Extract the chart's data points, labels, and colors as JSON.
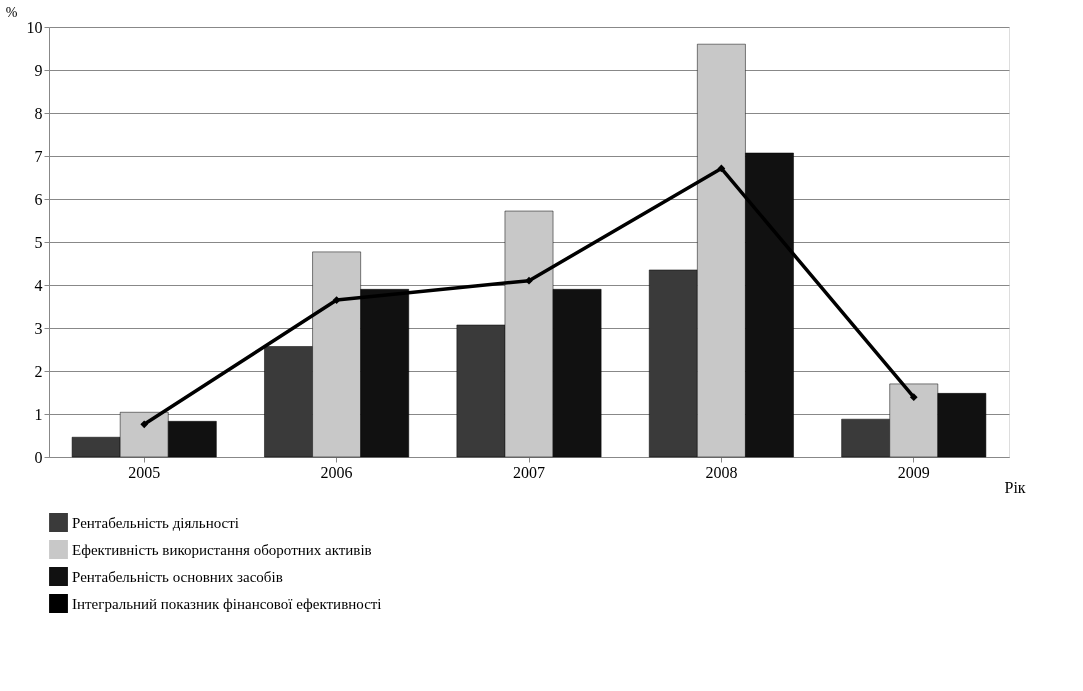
{
  "chart_data": {
    "type": "bar",
    "ylabel": "%",
    "xlabel": "Рік",
    "categories": [
      "2005",
      "2006",
      "2007",
      "2008",
      "2009"
    ],
    "series": [
      {
        "name": "Рентабельність діяльності",
        "color": "#3a3a3a",
        "values": [
          0.46,
          2.57,
          3.07,
          4.35,
          0.88
        ]
      },
      {
        "name": "Ефективність використання оборотних активів",
        "color": "#c8c8c8",
        "values": [
          1.04,
          4.77,
          5.72,
          9.6,
          1.7
        ]
      },
      {
        "name": "Рентабельність основних засобів",
        "color": "#111111",
        "values": [
          0.83,
          3.9,
          3.9,
          7.07,
          1.48
        ]
      },
      {
        "name": "Інтегральний показник фінансової ефективності",
        "color": "#000000",
        "type": "line",
        "values": [
          0.76,
          3.65,
          4.1,
          6.71,
          1.39
        ]
      }
    ],
    "ylim": [
      0,
      10
    ],
    "yticks": [
      0,
      1,
      2,
      3,
      4,
      5,
      6,
      7,
      8,
      9,
      10
    ],
    "grid": "y",
    "legend": "bottom",
    "marker": "diamond",
    "line_style": "solid"
  }
}
